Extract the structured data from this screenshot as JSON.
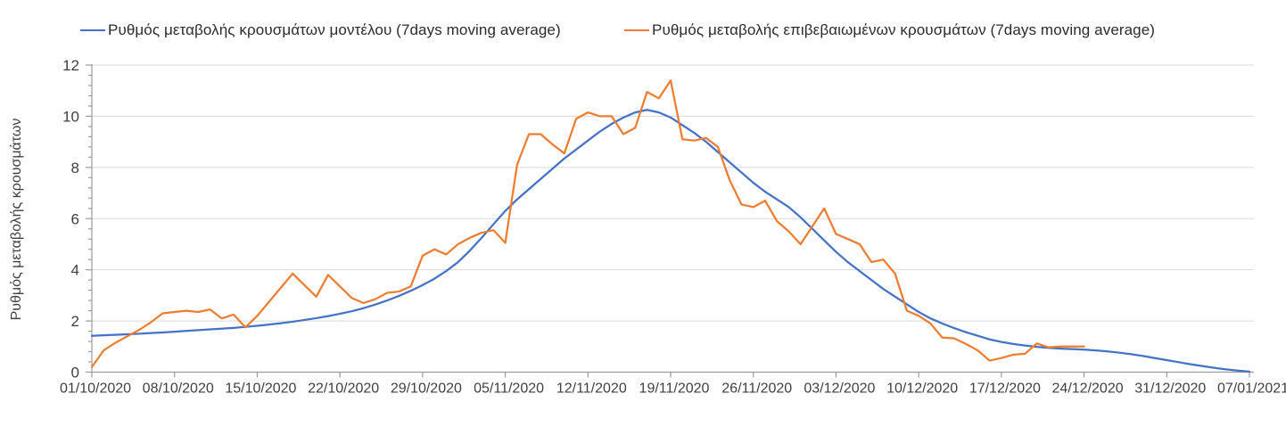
{
  "legend": {
    "items": [
      {
        "label": "Ρυθμός μεταβολής κρουσμάτων μοντέλου (7days moving average)",
        "color": "#4472C4"
      },
      {
        "label": "Ρυθμός μεταβολής επιβεβαιωμένων κρουσμάτων (7days moving average)",
        "color": "#ED7D31"
      }
    ]
  },
  "colors": {
    "model_line": "#4472C4",
    "confirmed_line": "#ED7D31",
    "gridline": "#D9D9D9",
    "axis": "#9B9B9B",
    "tick_text": "#404040"
  },
  "chart_data": {
    "type": "line",
    "title": "",
    "xlabel": "",
    "ylabel": "Ρυθμός μεταβολής κρουσμάτων",
    "ylim": [
      0,
      12
    ],
    "y_major_ticks": [
      0,
      2,
      4,
      6,
      8,
      10,
      12
    ],
    "y_minor_step": 0.4,
    "grid": "horizontal-major",
    "legend_position": "top",
    "x_start_date": "01/10/2020",
    "x_point_interval_days": 1,
    "x_tick_labels": [
      "01/10/2020",
      "08/10/2020",
      "15/10/2020",
      "22/10/2020",
      "29/10/2020",
      "05/11/2020",
      "12/11/2020",
      "19/11/2020",
      "26/11/2020",
      "03/12/2020",
      "10/12/2020",
      "17/12/2020",
      "24/12/2020",
      "31/12/2020",
      "07/01/2021"
    ],
    "x_days_between_ticks": 7,
    "series": [
      {
        "name": "Ρυθμός μεταβολής κρουσμάτων μοντέλου (7days moving average)",
        "color": "#4472C4",
        "start_day": 0,
        "values": [
          1.42,
          1.44,
          1.46,
          1.48,
          1.5,
          1.53,
          1.55,
          1.58,
          1.61,
          1.64,
          1.67,
          1.7,
          1.73,
          1.77,
          1.81,
          1.86,
          1.91,
          1.97,
          2.04,
          2.11,
          2.19,
          2.28,
          2.38,
          2.5,
          2.64,
          2.8,
          2.98,
          3.18,
          3.4,
          3.65,
          3.95,
          4.3,
          4.75,
          5.25,
          5.78,
          6.3,
          6.75,
          7.15,
          7.55,
          7.95,
          8.35,
          8.7,
          9.05,
          9.4,
          9.7,
          9.95,
          10.15,
          10.25,
          10.15,
          9.95,
          9.65,
          9.35,
          9.0,
          8.6,
          8.2,
          7.8,
          7.4,
          7.05,
          6.75,
          6.45,
          6.05,
          5.6,
          5.15,
          4.7,
          4.3,
          3.95,
          3.6,
          3.25,
          2.95,
          2.65,
          2.35,
          2.1,
          1.9,
          1.72,
          1.56,
          1.42,
          1.28,
          1.18,
          1.1,
          1.04,
          0.99,
          0.95,
          0.92,
          0.9,
          0.88,
          0.85,
          0.81,
          0.76,
          0.7,
          0.63,
          0.55,
          0.47,
          0.39,
          0.31,
          0.24,
          0.17,
          0.11,
          0.06,
          0.02
        ]
      },
      {
        "name": "Ρυθμός μεταβολής επιβεβαιωμένων κρουσμάτων (7days moving average)",
        "color": "#ED7D31",
        "start_day": 0,
        "values": [
          0.2,
          0.85,
          1.15,
          1.4,
          1.65,
          1.95,
          2.3,
          2.35,
          2.4,
          2.35,
          2.45,
          2.1,
          2.25,
          1.75,
          2.2,
          2.75,
          3.3,
          3.85,
          3.4,
          2.95,
          3.8,
          3.35,
          2.9,
          2.7,
          2.85,
          3.1,
          3.15,
          3.35,
          4.55,
          4.8,
          4.6,
          5.0,
          5.25,
          5.45,
          5.55,
          5.05,
          8.1,
          9.3,
          9.3,
          8.9,
          8.55,
          9.9,
          10.15,
          10.0,
          10.0,
          9.3,
          9.55,
          10.95,
          10.7,
          11.4,
          9.1,
          9.05,
          9.15,
          8.8,
          7.5,
          6.55,
          6.45,
          6.7,
          5.9,
          5.5,
          5.0,
          5.7,
          6.4,
          5.4,
          5.2,
          5.0,
          4.3,
          4.4,
          3.85,
          2.4,
          2.2,
          1.9,
          1.35,
          1.32,
          1.1,
          0.85,
          0.45,
          0.55,
          0.68,
          0.72,
          1.12,
          0.97,
          1.0,
          1.0,
          1.0
        ]
      }
    ]
  }
}
